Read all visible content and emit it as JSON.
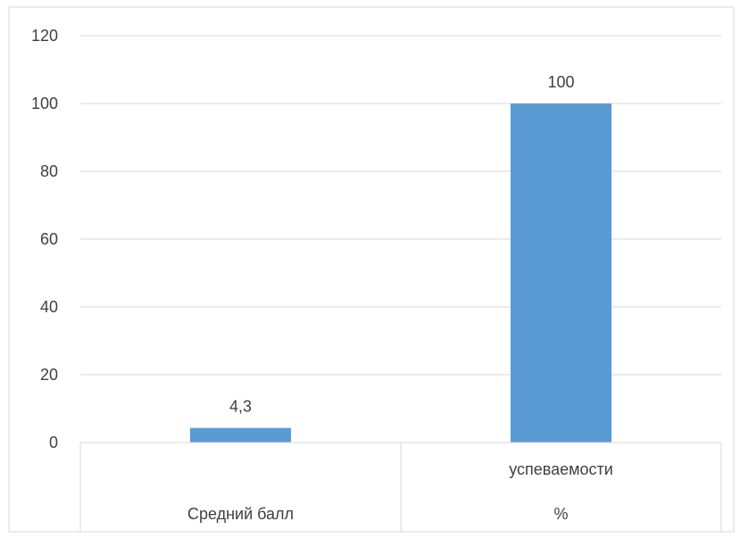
{
  "chart_data": {
    "type": "bar",
    "categories": [
      [
        "Средний балл"
      ],
      [
        "успеваемости",
        "%"
      ]
    ],
    "values": [
      4.3,
      100
    ],
    "data_labels": [
      "4,3",
      "100"
    ],
    "ylim": [
      0,
      120
    ],
    "yticks": [
      0,
      20,
      40,
      60,
      80,
      100,
      120
    ],
    "ytick_labels": [
      "0",
      "20",
      "40",
      "60",
      "80",
      "100",
      "120"
    ],
    "grid": true,
    "legend": "none",
    "bar_color": "#5b9bd5",
    "grid_color": "#d9d9d9",
    "text_color": "#404040"
  }
}
